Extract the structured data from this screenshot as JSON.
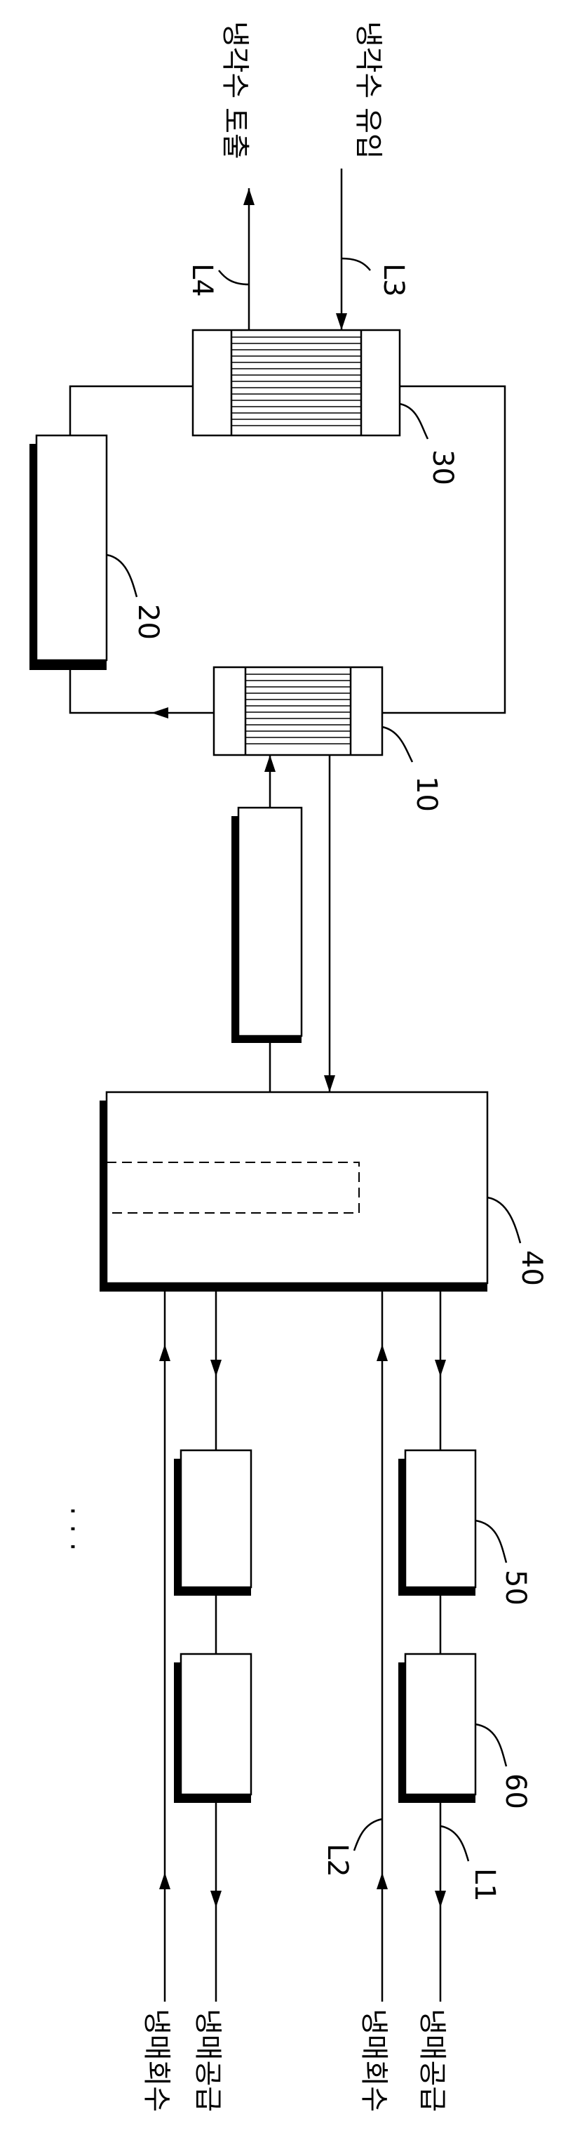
{
  "top_labels": {
    "coolant_out": "냉각수 토출",
    "coolant_in": "냉각수 유입"
  },
  "line_labels": {
    "l1": "L1",
    "l2": "L2",
    "l3": "L3",
    "l4": "L4"
  },
  "component_labels": {
    "c10": "10",
    "c20": "20",
    "c30": "30",
    "c40": "40",
    "c50": "50",
    "c60": "60"
  },
  "ellipsis": "· · ·",
  "bottom_labels": {
    "left_return": "냉매회수",
    "left_supply": "냉매공급",
    "right_return": "냉매회수",
    "right_supply": "냉매공급"
  }
}
